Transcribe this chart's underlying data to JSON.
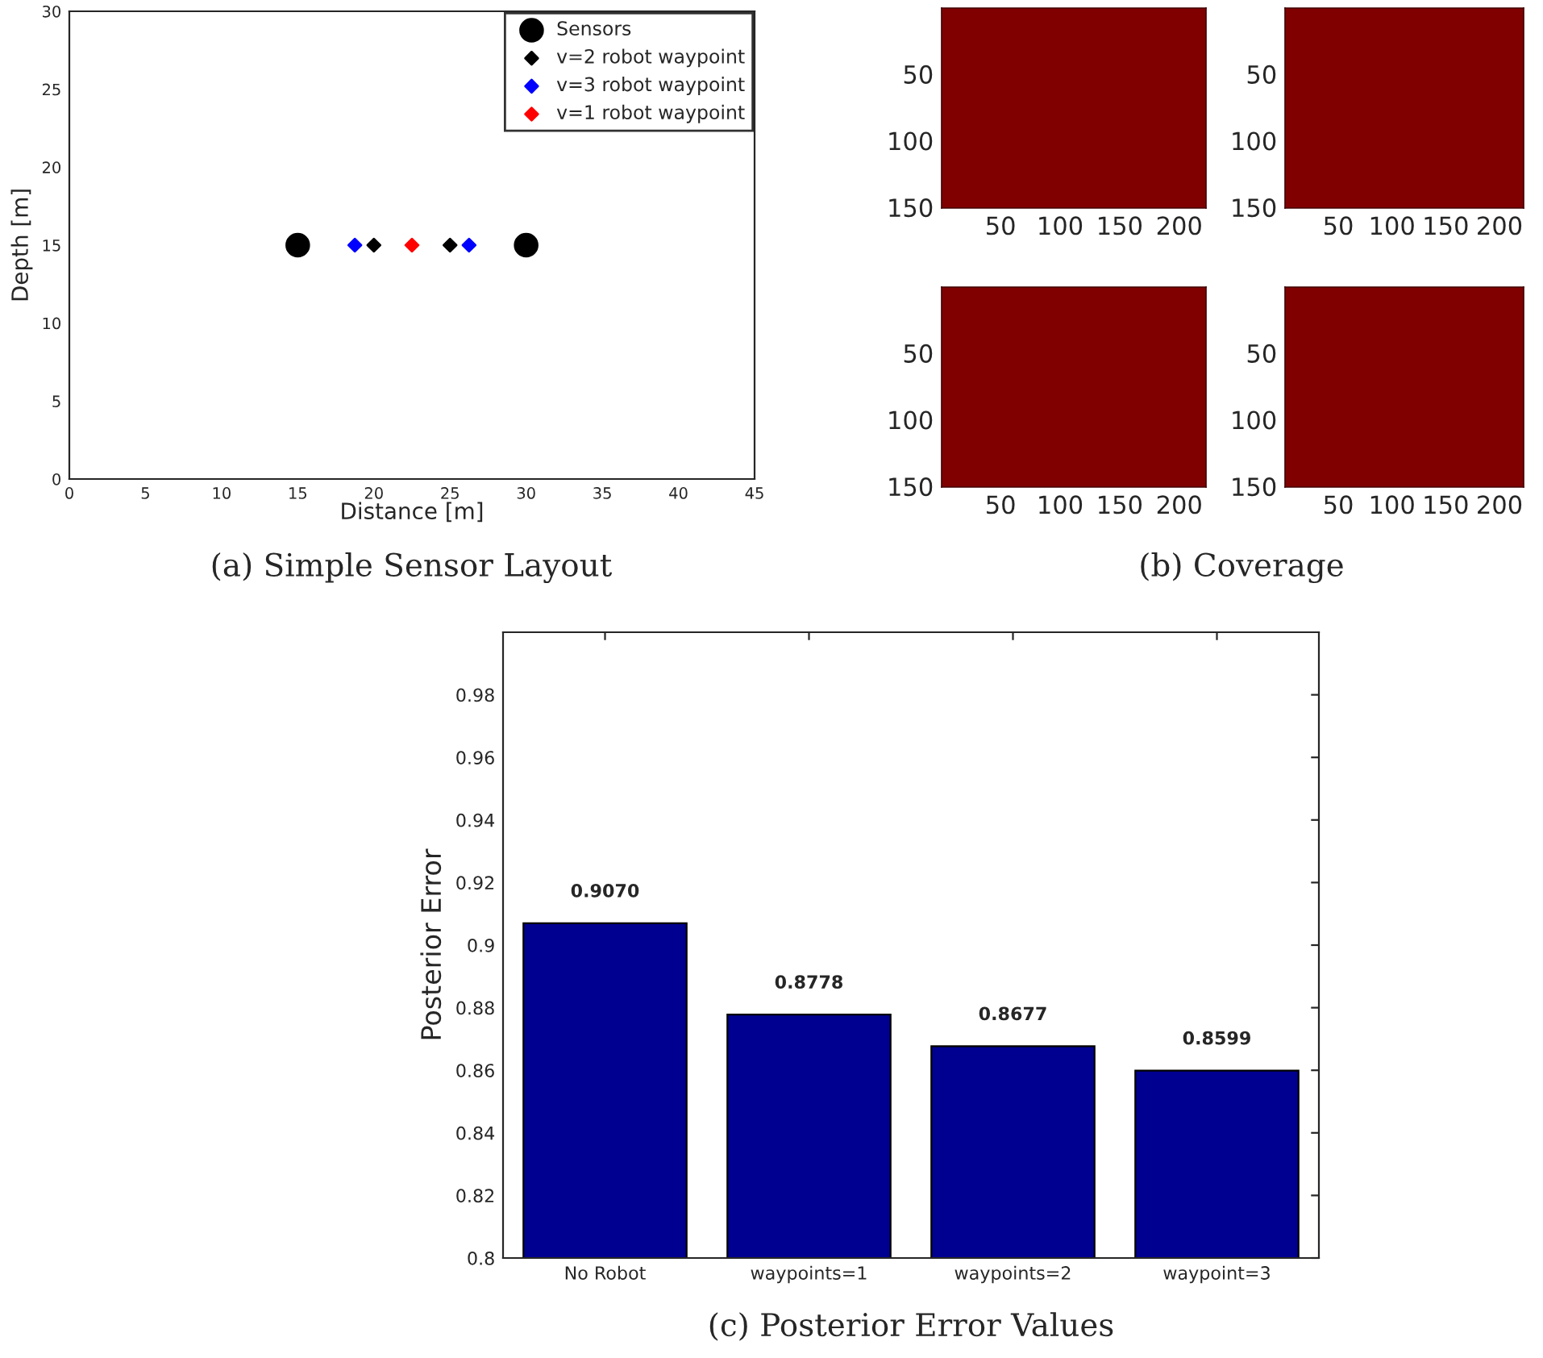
{
  "chart_data": [
    {
      "type": "scatter",
      "xlabel": "Distance [m]",
      "ylabel": "Depth [m]",
      "xlim": [
        0,
        45
      ],
      "ylim": [
        0,
        30
      ],
      "xticks": [
        0,
        5,
        10,
        15,
        20,
        25,
        30,
        35,
        40,
        45
      ],
      "yticks": [
        0,
        5,
        10,
        15,
        20,
        25,
        30
      ],
      "legend": "top right",
      "grid": false,
      "series": [
        {
          "name": "Sensors",
          "color": "#000000",
          "marker": "circle",
          "x": [
            15,
            30
          ],
          "values": [
            15,
            15
          ]
        },
        {
          "name": "v=2 robot waypoint",
          "color": "#000000",
          "marker": "diamond",
          "x": [
            20,
            25
          ],
          "values": [
            15,
            15
          ]
        },
        {
          "name": "v=3 robot waypoint",
          "color": "#0000ff",
          "marker": "diamond",
          "x": [
            18.75,
            26.25
          ],
          "values": [
            15,
            15
          ]
        },
        {
          "name": "v=1 robot waypoint",
          "color": "#ff0000",
          "marker": "diamond",
          "x": [
            22.5
          ],
          "values": [
            15
          ]
        }
      ],
      "annotations": [
        "(a) Simple Sensor Layout"
      ]
    },
    {
      "type": "heatmap",
      "xlim": [
        0.5,
        222.5
      ],
      "ylim": [
        150.5,
        0.5
      ],
      "xticks": [
        50,
        100,
        150,
        200
      ],
      "yticks": [
        50,
        100,
        150
      ],
      "annotations": [
        "(b) Coverage"
      ]
    },
    {
      "type": "heatmap",
      "xlim": [
        0.5,
        222.5
      ],
      "ylim": [
        150.5,
        0.5
      ],
      "xticks": [
        50,
        100,
        150,
        200
      ],
      "yticks": [
        50,
        100,
        150
      ]
    },
    {
      "type": "heatmap",
      "xlim": [
        0.5,
        222.5
      ],
      "ylim": [
        150.5,
        0.5
      ],
      "xticks": [
        50,
        100,
        150,
        200
      ],
      "yticks": [
        50,
        100,
        150
      ]
    },
    {
      "type": "heatmap",
      "xlim": [
        0.5,
        222.5
      ],
      "ylim": [
        150.5,
        0.5
      ],
      "xticks": [
        50,
        100,
        150,
        200
      ],
      "yticks": [
        50,
        100,
        150
      ]
    },
    {
      "type": "bar",
      "ylabel": "Posterior Error",
      "categories": [
        "No Robot",
        "waypoints=1",
        "waypoints=2",
        "waypoint=3"
      ],
      "values": [
        0.907,
        0.8778,
        0.8677,
        0.8599
      ],
      "value_labels": [
        "0.9070",
        "0.8778",
        "0.8677",
        "0.8599"
      ],
      "color": "#000090",
      "ylim": [
        0.8,
        1.0
      ],
      "yticks": [
        0.8,
        0.82,
        0.84,
        0.86,
        0.88,
        0.9,
        0.92,
        0.94,
        0.96,
        0.98
      ],
      "grid": false,
      "annotations": [
        "(c) Posterior Error Values"
      ]
    }
  ]
}
